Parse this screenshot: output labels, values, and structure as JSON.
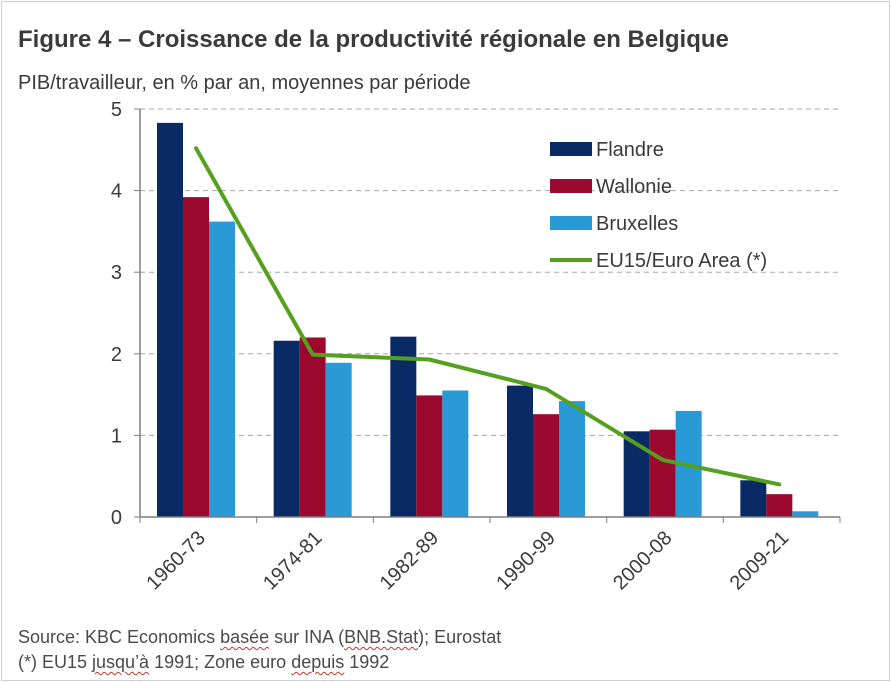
{
  "title": "Figure 4 – Croissance de la productivité régionale en Belgique",
  "subtitle": "PIB/travailleur, en % par an, moyennes par période",
  "source": {
    "line1_a": "Source: KBC Economics ",
    "line1_b": "basée",
    "line1_c": " sur INA (",
    "line1_d": "BNB.Stat",
    "line1_e": "); Eurostat",
    "line2_a": "(*) EU15 ",
    "line2_b": "jusqu’à",
    "line2_c": " 1991; Zone euro ",
    "line2_d": "depuis",
    "line2_e": " 1992"
  },
  "colors": {
    "Flandre": "#0a2a66",
    "Wallonie": "#9b0a2e",
    "Bruxelles": "#2a9ad6",
    "EU15/Euro Area (*)": "#55a01e",
    "grid": "#a6a6a6",
    "axis": "#7f7f7f"
  },
  "chart_data": {
    "type": "bar",
    "title": "Figure 4 – Croissance de la productivité régionale en Belgique",
    "ylabel": "PIB/travailleur, en % par an, moyennes par période",
    "categories": [
      "1960-73",
      "1974-81",
      "1982-89",
      "1990-99",
      "2000-08",
      "2009-21"
    ],
    "ylim": [
      0,
      5
    ],
    "yticks": [
      "0",
      "1",
      "2",
      "3",
      "4",
      "5"
    ],
    "grid": true,
    "legend": "top-right",
    "series": [
      {
        "name": "Flandre",
        "kind": "bar",
        "values": [
          4.83,
          2.16,
          2.21,
          1.61,
          1.05,
          0.45
        ]
      },
      {
        "name": "Wallonie",
        "kind": "bar",
        "values": [
          3.92,
          2.2,
          1.49,
          1.26,
          1.07,
          0.28
        ]
      },
      {
        "name": "Bruxelles",
        "kind": "bar",
        "values": [
          3.62,
          1.89,
          1.55,
          1.42,
          1.3,
          0.07
        ]
      },
      {
        "name": "EU15/Euro Area (*)",
        "kind": "line",
        "values": [
          4.52,
          1.99,
          1.93,
          1.57,
          0.7,
          0.4
        ]
      }
    ]
  }
}
